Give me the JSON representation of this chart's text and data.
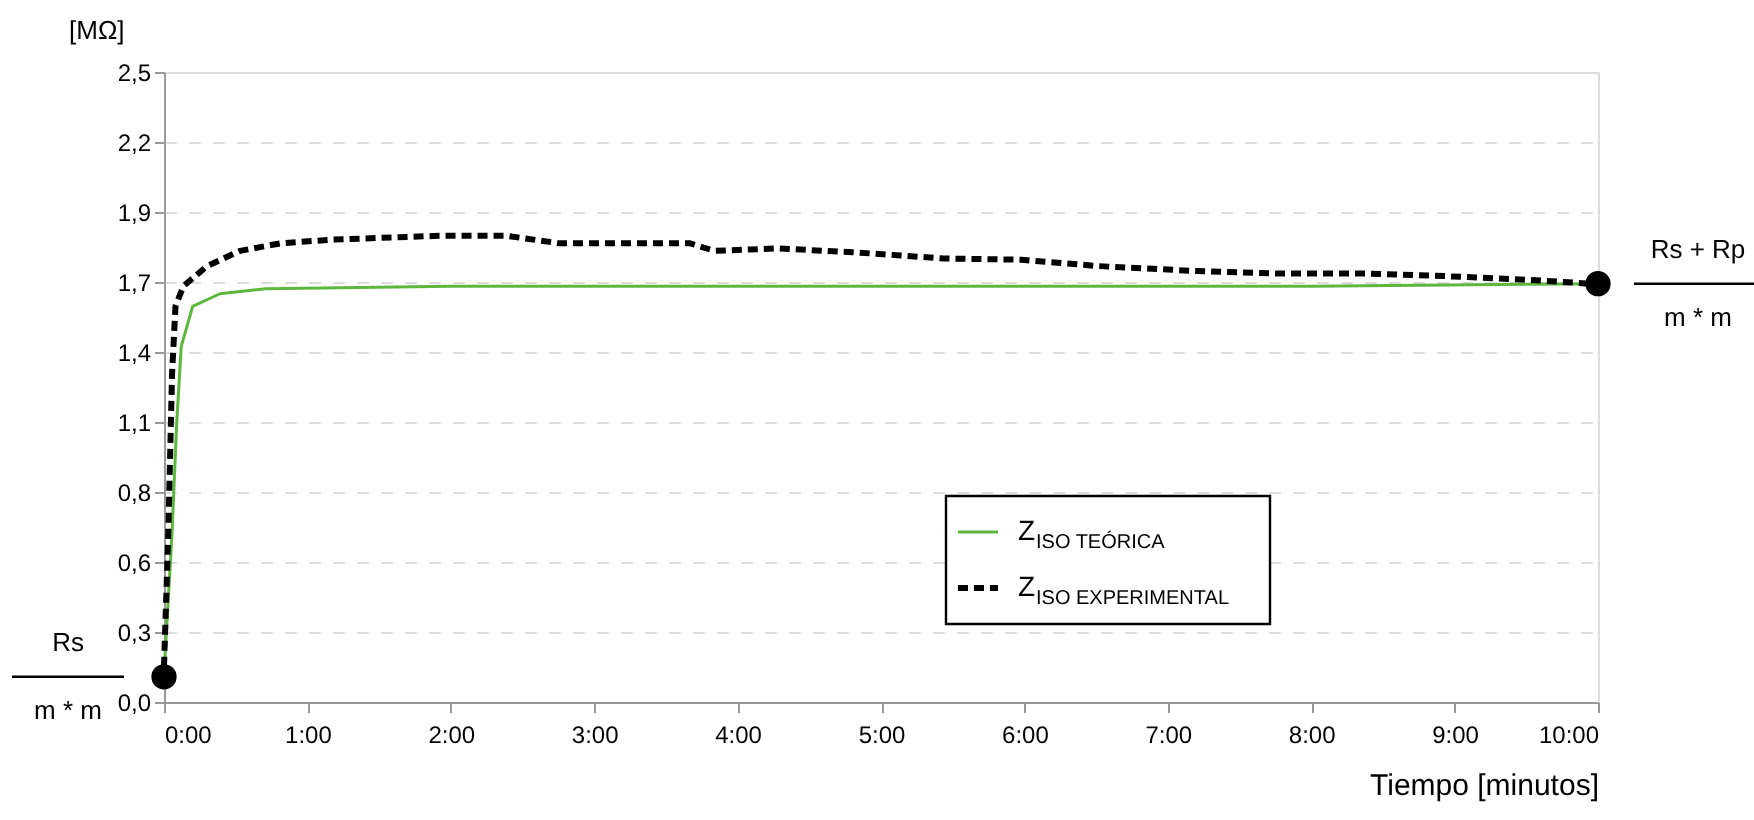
{
  "chart_data": {
    "type": "line",
    "xlabel": "Tiempo [minutos]",
    "ylabel": "[MΩ]",
    "xlim": [
      0,
      10
    ],
    "xticks": [
      {
        "value": 0,
        "label": "0:00"
      },
      {
        "value": 1,
        "label": "1:00"
      },
      {
        "value": 2,
        "label": "2:00"
      },
      {
        "value": 3,
        "label": "3:00"
      },
      {
        "value": 4,
        "label": "4:00"
      },
      {
        "value": 5,
        "label": "5:00"
      },
      {
        "value": 6,
        "label": "6:00"
      },
      {
        "value": 7,
        "label": "7:00"
      },
      {
        "value": 8,
        "label": "8:00"
      },
      {
        "value": 9,
        "label": "9:00"
      },
      {
        "value": 10,
        "label": "10:00"
      }
    ],
    "ylim": [
      0,
      2.5
    ],
    "yticks": [
      {
        "value": 0,
        "label": "0,0"
      },
      {
        "value": 0.2778,
        "label": "0,3"
      },
      {
        "value": 0.5556,
        "label": "0,6"
      },
      {
        "value": 0.8333,
        "label": "0,8"
      },
      {
        "value": 1.1111,
        "label": "1,1"
      },
      {
        "value": 1.3889,
        "label": "1,4"
      },
      {
        "value": 1.6667,
        "label": "1,7"
      },
      {
        "value": 1.9444,
        "label": "1,9"
      },
      {
        "value": 2.2222,
        "label": "2,2"
      },
      {
        "value": 2.5,
        "label": "2,5"
      }
    ],
    "grid": "y",
    "legend": "bottom right",
    "series": [
      {
        "name": "Z$_{ISO TEÓRICA}$",
        "color": "#5cb83c",
        "line_style": "solid",
        "x": [
          0,
          0.056,
          0.088,
          0.12,
          0.2,
          0.39,
          0.71,
          2,
          4,
          6,
          8,
          10
        ],
        "values": [
          0.11,
          0.67,
          1.1,
          1.41,
          1.57,
          1.62,
          1.64,
          1.65,
          1.65,
          1.65,
          1.65,
          1.66
        ]
      },
      {
        "name": "Z$_{ISO EXPERIMENTAL}$",
        "color": "#000000",
        "line_style": "dashed",
        "x": [
          0,
          0.03,
          0.056,
          0.08,
          0.135,
          0.3,
          0.53,
          0.81,
          1.18,
          1.92,
          2.39,
          2.76,
          3.67,
          3.84,
          4.27,
          4.8,
          5.44,
          5.98,
          6.51,
          7.21,
          7.8,
          8.4,
          8.93,
          9.53,
          9.94
        ],
        "values": [
          0.14,
          0.67,
          1.3,
          1.57,
          1.65,
          1.73,
          1.79,
          1.82,
          1.835,
          1.85,
          1.85,
          1.82,
          1.82,
          1.79,
          1.8,
          1.785,
          1.76,
          1.755,
          1.73,
          1.71,
          1.7,
          1.7,
          1.69,
          1.675,
          1.66
        ]
      },
      {
        "type": "scatter",
        "color": "#000000",
        "marker": "circle",
        "x": [
          0,
          10
        ],
        "values": [
          0.1,
          1.66
        ]
      }
    ],
    "annotations": [
      "Rs",
      "m * m",
      "Rs + Rp",
      "m * m"
    ]
  }
}
